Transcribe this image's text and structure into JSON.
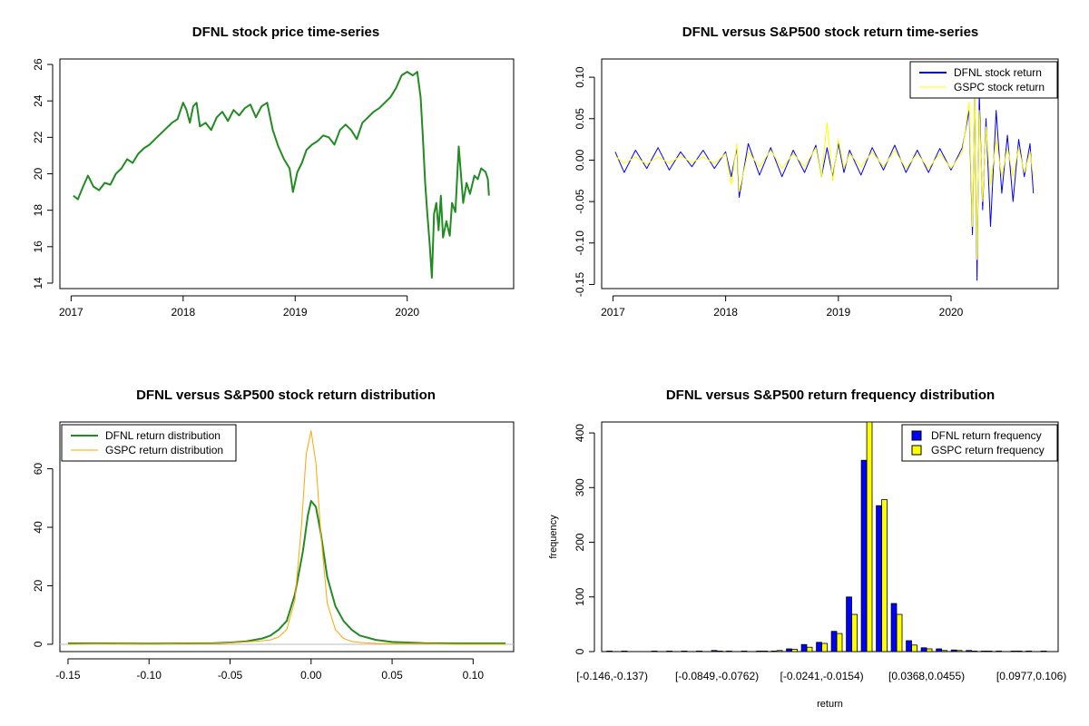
{
  "chart_data": [
    {
      "type": "line",
      "title": "DFNL stock price time-series",
      "xlabel": "",
      "ylabel": "",
      "x_ticks": [
        "2017",
        "2018",
        "2019",
        "2020"
      ],
      "x_tick_values": [
        2017,
        2018,
        2019,
        2020
      ],
      "y_ticks": [
        "14",
        "16",
        "18",
        "20",
        "22",
        "24",
        "26"
      ],
      "y_tick_values": [
        14,
        16,
        18,
        20,
        22,
        24,
        26
      ],
      "xlim": [
        2016.9,
        2020.95
      ],
      "ylim": [
        13.7,
        26.3
      ],
      "series": [
        {
          "name": "DFNL",
          "color": "#228B22",
          "x": [
            2017.02,
            2017.06,
            2017.1,
            2017.15,
            2017.2,
            2017.25,
            2017.3,
            2017.35,
            2017.4,
            2017.45,
            2017.5,
            2017.55,
            2017.6,
            2017.65,
            2017.7,
            2017.75,
            2017.8,
            2017.85,
            2017.9,
            2017.95,
            2018.0,
            2018.03,
            2018.06,
            2018.09,
            2018.12,
            2018.15,
            2018.2,
            2018.25,
            2018.3,
            2018.35,
            2018.4,
            2018.45,
            2018.5,
            2018.55,
            2018.6,
            2018.65,
            2018.7,
            2018.75,
            2018.8,
            2018.85,
            2018.9,
            2018.95,
            2018.98,
            2019.02,
            2019.06,
            2019.1,
            2019.15,
            2019.2,
            2019.25,
            2019.3,
            2019.35,
            2019.4,
            2019.45,
            2019.5,
            2019.55,
            2019.6,
            2019.65,
            2019.7,
            2019.75,
            2019.8,
            2019.85,
            2019.9,
            2019.95,
            2020.0,
            2020.05,
            2020.09,
            2020.12,
            2020.14,
            2020.16,
            2020.18,
            2020.2,
            2020.22,
            2020.24,
            2020.26,
            2020.28,
            2020.3,
            2020.32,
            2020.35,
            2020.38,
            2020.4,
            2020.43,
            2020.46,
            2020.5,
            2020.53,
            2020.56,
            2020.6,
            2020.63,
            2020.66,
            2020.7,
            2020.72,
            2020.73
          ],
          "y": [
            18.8,
            18.6,
            19.2,
            19.9,
            19.3,
            19.1,
            19.5,
            19.4,
            20.0,
            20.3,
            20.8,
            20.6,
            21.1,
            21.4,
            21.6,
            21.9,
            22.2,
            22.5,
            22.8,
            23.0,
            23.9,
            23.5,
            22.8,
            23.7,
            23.9,
            22.6,
            22.8,
            22.4,
            23.1,
            23.4,
            22.9,
            23.5,
            23.2,
            23.6,
            23.8,
            23.1,
            23.7,
            23.9,
            22.4,
            21.5,
            20.8,
            20.3,
            19.0,
            20.1,
            20.6,
            21.3,
            21.6,
            21.8,
            22.1,
            22.0,
            21.6,
            22.4,
            22.7,
            22.4,
            21.9,
            22.8,
            23.1,
            23.4,
            23.6,
            23.9,
            24.2,
            24.7,
            25.4,
            25.6,
            25.4,
            25.6,
            24.2,
            22.0,
            19.5,
            17.8,
            16.2,
            14.3,
            17.8,
            18.4,
            16.9,
            18.8,
            16.5,
            17.4,
            16.6,
            18.4,
            17.9,
            21.5,
            18.4,
            19.5,
            18.9,
            19.9,
            19.7,
            20.3,
            20.1,
            19.7,
            18.8
          ]
        }
      ]
    },
    {
      "type": "line",
      "title": "DFNL versus S&P500 stock return time-series",
      "xlabel": "",
      "ylabel": "",
      "x_ticks": [
        "2017",
        "2018",
        "2019",
        "2020"
      ],
      "x_tick_values": [
        2017,
        2018,
        2019,
        2020
      ],
      "y_ticks": [
        "-0.15",
        "-0.10",
        "-0.05",
        "0.00",
        "0.05",
        "0.10"
      ],
      "y_tick_values": [
        -0.15,
        -0.1,
        -0.05,
        0.0,
        0.05,
        0.1
      ],
      "xlim": [
        2016.9,
        2020.95
      ],
      "ylim": [
        -0.155,
        0.122
      ],
      "legend": [
        {
          "name": "DFNL stock return",
          "color": "#0000FF"
        },
        {
          "name": "GSPC stock return",
          "color": "#FFFF00"
        }
      ],
      "series": [
        {
          "name": "DFNL stock return",
          "color": "#0000FF",
          "x": [
            2017.02,
            2017.1,
            2017.2,
            2017.3,
            2017.4,
            2017.5,
            2017.6,
            2017.7,
            2017.8,
            2017.9,
            2018.0,
            2018.05,
            2018.1,
            2018.12,
            2018.2,
            2018.3,
            2018.4,
            2018.5,
            2018.6,
            2018.7,
            2018.8,
            2018.85,
            2018.9,
            2018.95,
            2019.0,
            2019.05,
            2019.1,
            2019.2,
            2019.3,
            2019.4,
            2019.5,
            2019.6,
            2019.7,
            2019.8,
            2019.9,
            2020.0,
            2020.1,
            2020.16,
            2020.19,
            2020.21,
            2020.23,
            2020.25,
            2020.28,
            2020.31,
            2020.35,
            2020.4,
            2020.45,
            2020.5,
            2020.55,
            2020.6,
            2020.65,
            2020.7,
            2020.73
          ],
          "y": [
            0.01,
            -0.015,
            0.012,
            -0.01,
            0.015,
            -0.012,
            0.01,
            -0.008,
            0.012,
            -0.01,
            0.01,
            -0.02,
            0.015,
            -0.045,
            0.02,
            -0.018,
            0.015,
            -0.02,
            0.012,
            -0.015,
            0.018,
            -0.02,
            0.015,
            -0.02,
            0.02,
            -0.015,
            0.012,
            -0.018,
            0.015,
            -0.012,
            0.018,
            -0.015,
            0.012,
            -0.015,
            0.014,
            -0.012,
            0.015,
            0.06,
            -0.09,
            0.09,
            -0.145,
            0.08,
            -0.06,
            0.05,
            -0.08,
            0.06,
            -0.04,
            0.03,
            -0.05,
            0.025,
            -0.02,
            0.02,
            -0.04
          ]
        },
        {
          "name": "GSPC stock return",
          "color": "#FFFF00",
          "x": [
            2017.02,
            2017.1,
            2017.2,
            2017.3,
            2017.4,
            2017.5,
            2017.6,
            2017.7,
            2017.8,
            2017.9,
            2018.0,
            2018.05,
            2018.1,
            2018.12,
            2018.2,
            2018.3,
            2018.4,
            2018.5,
            2018.6,
            2018.7,
            2018.8,
            2018.85,
            2018.9,
            2018.95,
            2019.0,
            2019.05,
            2019.1,
            2019.2,
            2019.3,
            2019.4,
            2019.5,
            2019.6,
            2019.7,
            2019.8,
            2019.9,
            2020.0,
            2020.1,
            2020.16,
            2020.19,
            2020.21,
            2020.23,
            2020.25,
            2020.28,
            2020.31,
            2020.35,
            2020.4,
            2020.45,
            2020.5,
            2020.55,
            2020.6,
            2020.65,
            2020.7,
            2020.73
          ],
          "y": [
            0.005,
            -0.004,
            0.004,
            -0.005,
            0.004,
            -0.004,
            0.005,
            -0.003,
            0.004,
            -0.004,
            0.008,
            -0.03,
            0.02,
            -0.038,
            0.01,
            -0.008,
            0.012,
            -0.01,
            0.008,
            -0.008,
            0.015,
            -0.02,
            0.045,
            -0.025,
            0.025,
            -0.01,
            0.008,
            -0.008,
            0.01,
            -0.008,
            0.012,
            -0.01,
            0.008,
            -0.01,
            0.008,
            -0.01,
            0.01,
            0.07,
            -0.08,
            0.09,
            -0.12,
            0.06,
            -0.05,
            0.04,
            -0.03,
            0.025,
            -0.02,
            0.015,
            -0.02,
            0.015,
            -0.015,
            0.01,
            -0.02
          ]
        }
      ]
    },
    {
      "type": "line",
      "title": "DFNL versus S&P500 stock return distribution",
      "xlabel": "",
      "ylabel": "",
      "x_ticks": [
        "-0.15",
        "-0.10",
        "-0.05",
        "0.00",
        "0.05",
        "0.10"
      ],
      "x_tick_values": [
        -0.15,
        -0.1,
        -0.05,
        0.0,
        0.05,
        0.1
      ],
      "y_ticks": [
        "0",
        "20",
        "40",
        "60"
      ],
      "y_tick_values": [
        0,
        20,
        40,
        60
      ],
      "xlim": [
        -0.155,
        0.125
      ],
      "ylim": [
        -2.5,
        76
      ],
      "legend": [
        {
          "name": "DFNL return distribution",
          "color": "#228B22"
        },
        {
          "name": "GSPC return distribution",
          "color": "#FFA500"
        }
      ],
      "series": [
        {
          "name": "DFNL return distribution",
          "color": "#228B22",
          "x": [
            -0.15,
            -0.12,
            -0.1,
            -0.08,
            -0.06,
            -0.05,
            -0.04,
            -0.03,
            -0.025,
            -0.02,
            -0.015,
            -0.01,
            -0.005,
            -0.002,
            0.0,
            0.003,
            0.006,
            0.01,
            0.015,
            0.02,
            0.025,
            0.03,
            0.04,
            0.05,
            0.07,
            0.09,
            0.12
          ],
          "y": [
            0.3,
            0.3,
            0.2,
            0.3,
            0.4,
            0.6,
            1.0,
            2.0,
            3.0,
            5.0,
            8.0,
            17.0,
            32.0,
            44.0,
            49.0,
            47.0,
            38.0,
            23.0,
            13.0,
            8.0,
            5.0,
            3.0,
            1.5,
            0.8,
            0.4,
            0.3,
            0.3
          ]
        },
        {
          "name": "GSPC return distribution",
          "color": "#FFA500",
          "x": [
            -0.15,
            -0.12,
            -0.1,
            -0.08,
            -0.06,
            -0.05,
            -0.04,
            -0.03,
            -0.025,
            -0.02,
            -0.015,
            -0.01,
            -0.006,
            -0.003,
            0.0,
            0.003,
            0.006,
            0.01,
            0.015,
            0.02,
            0.025,
            0.03,
            0.04,
            0.05,
            0.07,
            0.09,
            0.12
          ],
          "y": [
            0.0,
            0.2,
            0.0,
            0.2,
            0.3,
            0.5,
            0.8,
            1.2,
            1.5,
            2.5,
            5.0,
            15.0,
            40.0,
            65.0,
            73.0,
            62.0,
            38.0,
            14.0,
            5.0,
            2.0,
            1.0,
            0.6,
            0.3,
            0.2,
            0.2,
            0.0,
            0.0
          ]
        }
      ]
    },
    {
      "type": "bar",
      "title": "DFNL versus S&P500 return frequency distribution",
      "xlabel": "return",
      "ylabel": "frequency",
      "y_ticks": [
        "0",
        "100",
        "200",
        "300",
        "400"
      ],
      "y_tick_values": [
        0,
        100,
        200,
        300,
        400
      ],
      "ylim": [
        0,
        420
      ],
      "category_labels": [
        {
          "index": 0,
          "label": "[-0.146,-0.137)"
        },
        {
          "index": 7,
          "label": "[-0.0849,-0.0762)"
        },
        {
          "index": 14,
          "label": "[-0.0241,-0.0154)"
        },
        {
          "index": 21,
          "label": "[0.0368,0.0455)"
        },
        {
          "index": 28,
          "label": "[0.0977,0.106)"
        }
      ],
      "bin_count": 30,
      "legend": [
        {
          "name": "DFNL return frequency",
          "color": "#0000FF"
        },
        {
          "name": "GSPC return frequency",
          "color": "#FFFF00"
        }
      ],
      "series": [
        {
          "name": "DFNL return frequency",
          "color": "#0000FF",
          "values": [
            1,
            1,
            0,
            1,
            1,
            1,
            1,
            2,
            1,
            1,
            1,
            1,
            5,
            13,
            17,
            37,
            100,
            350,
            267,
            88,
            20,
            7,
            5,
            3,
            2,
            1,
            1,
            1,
            1,
            1
          ]
        },
        {
          "name": "GSPC return frequency",
          "color": "#FFFF00",
          "values": [
            0,
            0,
            0,
            0,
            0,
            0,
            0,
            1,
            0,
            0,
            1,
            2,
            4,
            8,
            15,
            33,
            68,
            420,
            278,
            68,
            12,
            5,
            2,
            2,
            1,
            1,
            0,
            1,
            0,
            0
          ]
        }
      ]
    }
  ]
}
